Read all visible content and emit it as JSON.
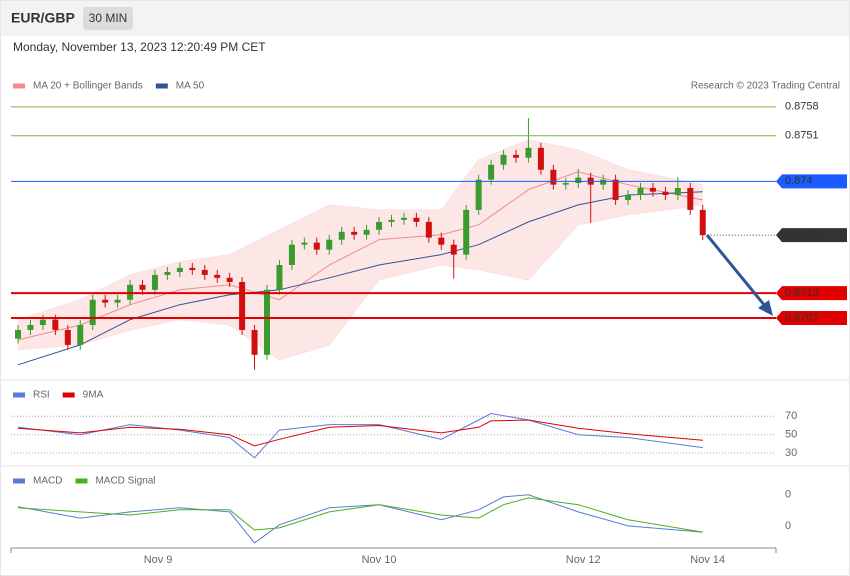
{
  "header": {
    "symbol": "EUR/GBP",
    "timeframe": "30 MIN",
    "date": "Monday, November 13, 2023 12:20:49 PM CET"
  },
  "chart_data": [
    {
      "type": "candlestick",
      "credit": "Research © 2023 Trading Central",
      "ylim": [
        0.86925,
        0.87681
      ],
      "up_color": "#3a9c2f",
      "down_color": "#d01010",
      "candles": [
        [
          0.8702,
          0.87053,
          0.87008,
          0.87041
        ],
        [
          0.87041,
          0.87065,
          0.87029,
          0.87053
        ],
        [
          0.87053,
          0.87078,
          0.87041,
          0.87066
        ],
        [
          0.87066,
          0.87078,
          0.87029,
          0.87041
        ],
        [
          0.87041,
          0.87053,
          0.86993,
          0.87005
        ],
        [
          0.87005,
          0.87065,
          0.86993,
          0.87053
        ],
        [
          0.87053,
          0.87126,
          0.87041,
          0.87114
        ],
        [
          0.87114,
          0.87126,
          0.87095,
          0.87107
        ],
        [
          0.87107,
          0.87126,
          0.87095,
          0.87114
        ],
        [
          0.87114,
          0.87162,
          0.87102,
          0.8715
        ],
        [
          0.8715,
          0.87162,
          0.87126,
          0.87138
        ],
        [
          0.87138,
          0.87186,
          0.87126,
          0.87174
        ],
        [
          0.87174,
          0.87193,
          0.87162,
          0.87181
        ],
        [
          0.87181,
          0.87203,
          0.87169,
          0.87191
        ],
        [
          0.87191,
          0.87203,
          0.87174,
          0.87186
        ],
        [
          0.87186,
          0.87198,
          0.87162,
          0.87174
        ],
        [
          0.87174,
          0.87186,
          0.87155,
          0.87167
        ],
        [
          0.87167,
          0.87179,
          0.87145,
          0.87157
        ],
        [
          0.87157,
          0.87169,
          0.87029,
          0.87041
        ],
        [
          0.87041,
          0.87053,
          0.86945,
          0.86981
        ],
        [
          0.86981,
          0.8715,
          0.86969,
          0.87138
        ],
        [
          0.87138,
          0.8721,
          0.87126,
          0.87198
        ],
        [
          0.87198,
          0.87259,
          0.87186,
          0.87247
        ],
        [
          0.87247,
          0.87264,
          0.87235,
          0.87252
        ],
        [
          0.87252,
          0.87264,
          0.87223,
          0.87235
        ],
        [
          0.87235,
          0.87271,
          0.87223,
          0.87259
        ],
        [
          0.87259,
          0.8729,
          0.87247,
          0.87278
        ],
        [
          0.87278,
          0.8729,
          0.87259,
          0.87271
        ],
        [
          0.87271,
          0.87295,
          0.87259,
          0.87283
        ],
        [
          0.87283,
          0.87314,
          0.87271,
          0.87302
        ],
        [
          0.87302,
          0.87319,
          0.8729,
          0.87307
        ],
        [
          0.87307,
          0.87324,
          0.87295,
          0.87312
        ],
        [
          0.87312,
          0.87324,
          0.8729,
          0.87302
        ],
        [
          0.87302,
          0.87314,
          0.87252,
          0.87264
        ],
        [
          0.87264,
          0.87276,
          0.87235,
          0.87247
        ],
        [
          0.87247,
          0.87259,
          0.87165,
          0.87223
        ],
        [
          0.87223,
          0.87343,
          0.87211,
          0.87331
        ],
        [
          0.87331,
          0.87416,
          0.87319,
          0.87404
        ],
        [
          0.87404,
          0.87452,
          0.87392,
          0.8744
        ],
        [
          0.8744,
          0.87476,
          0.87428,
          0.87464
        ],
        [
          0.87464,
          0.87476,
          0.87445,
          0.87457
        ],
        [
          0.87457,
          0.87553,
          0.87445,
          0.87481
        ],
        [
          0.87481,
          0.87493,
          0.87416,
          0.87428
        ],
        [
          0.87428,
          0.8744,
          0.8738,
          0.87392
        ],
        [
          0.87392,
          0.87408,
          0.8738,
          0.87396
        ],
        [
          0.87396,
          0.8743,
          0.87384,
          0.87409
        ],
        [
          0.87409,
          0.87421,
          0.873,
          0.87392
        ],
        [
          0.87392,
          0.87416,
          0.8738,
          0.87404
        ],
        [
          0.87404,
          0.87416,
          0.87343,
          0.87355
        ],
        [
          0.87355,
          0.87379,
          0.87343,
          0.87367
        ],
        [
          0.87367,
          0.87396,
          0.87355,
          0.87384
        ],
        [
          0.87384,
          0.87396,
          0.87363,
          0.87375
        ],
        [
          0.87375,
          0.87387,
          0.87355,
          0.87367
        ],
        [
          0.87367,
          0.8741,
          0.87355,
          0.87384
        ],
        [
          0.87384,
          0.87396,
          0.87319,
          0.87331
        ],
        [
          0.87331,
          0.87343,
          0.87258,
          0.8727
        ]
      ],
      "series": [
        {
          "name": "MA 20 + Bollinger Bands",
          "color": "#f08c8c",
          "band_color": "#fde0e0",
          "x": [
            0,
            5,
            9,
            13,
            17,
            21,
            25,
            29,
            34,
            37,
            41,
            45,
            49,
            55
          ],
          "values": [
            0.87017,
            0.87053,
            0.87102,
            0.87138,
            0.8715,
            0.87114,
            0.87198,
            0.87259,
            0.87271,
            0.87295,
            0.8738,
            0.87423,
            0.87392,
            0.87355
          ],
          "upper": [
            0.87066,
            0.87114,
            0.87174,
            0.87206,
            0.87223,
            0.87283,
            0.87343,
            0.87331,
            0.87331,
            0.87452,
            0.875,
            0.87476,
            0.87428,
            0.87392
          ],
          "lower": [
            0.86993,
            0.87005,
            0.87041,
            0.87066,
            0.87053,
            0.86969,
            0.87005,
            0.87162,
            0.87198,
            0.87186,
            0.87162,
            0.87295,
            0.87319,
            0.87343
          ]
        },
        {
          "name": "MA 50",
          "color": "#2f5597",
          "x": [
            0,
            5,
            9,
            13,
            17,
            21,
            25,
            29,
            34,
            37,
            41,
            45,
            49,
            55
          ],
          "values": [
            0.86957,
            0.87005,
            0.87066,
            0.87102,
            0.87126,
            0.87138,
            0.87167,
            0.87198,
            0.87223,
            0.87247,
            0.87302,
            0.87343,
            0.87367,
            0.87375
          ]
        }
      ],
      "levels": [
        {
          "value": 0.8758,
          "color": "#7cb342",
          "label_style": "text",
          "line": "solid"
        },
        {
          "value": 0.8751,
          "color": "#7cb342",
          "label_style": "text",
          "line": "solid"
        },
        {
          "value": 0.874,
          "color": "#1a5cff",
          "label_style": "tag",
          "line": "solid"
        },
        {
          "value": 0.8727,
          "color": "#333333",
          "label_style": "tag",
          "line": "dotted"
        },
        {
          "value": 0.8713,
          "color": "#e00000",
          "label_style": "tag",
          "line": "thick"
        },
        {
          "value": 0.8707,
          "color": "#e00000",
          "label_style": "tag",
          "line": "thick"
        }
      ]
    },
    {
      "type": "line",
      "ylim": [
        15,
        105
      ],
      "yticks": [
        70,
        50,
        30
      ],
      "grid": true,
      "series": [
        {
          "name": "RSI",
          "color": "#5b7bd5",
          "x": [
            0,
            5,
            9,
            13,
            17,
            19,
            21,
            25,
            29,
            34,
            37,
            38,
            41,
            45,
            49,
            55
          ],
          "values": [
            58,
            50,
            61,
            55,
            47,
            25,
            55,
            61,
            61,
            45,
            66,
            73,
            66,
            50,
            47,
            36
          ]
        },
        {
          "name": "9MA",
          "color": "#e00000",
          "x": [
            0,
            5,
            9,
            13,
            17,
            19,
            21,
            25,
            29,
            34,
            37,
            38,
            41,
            45,
            49,
            55
          ],
          "values": [
            57,
            52,
            58,
            56,
            50,
            38,
            45,
            58,
            60,
            52,
            58,
            65,
            66,
            57,
            51,
            44
          ]
        }
      ]
    },
    {
      "type": "line",
      "ylim": [
        -0.00067,
        0.00078
      ],
      "yticks": [
        {
          "value": 0.0003,
          "label": "0"
        },
        {
          "value": -0.0003,
          "label": "0"
        }
      ],
      "grid": false,
      "xticks": [
        {
          "value": 11.25,
          "label": "Nov 9"
        },
        {
          "value": 29,
          "label": "Nov 10"
        },
        {
          "value": 45.4,
          "label": "Nov 12"
        },
        {
          "value": 55.4,
          "label": "Nov 14"
        }
      ],
      "series": [
        {
          "name": "MACD",
          "color": "#5b7bd5",
          "x": [
            0,
            5,
            9,
            13,
            17,
            19,
            21,
            25,
            29,
            34,
            37,
            39,
            41,
            45,
            49,
            55
          ],
          "values": [
            7e-05,
            -0.00015,
            -3e-05,
            5e-05,
            -3e-05,
            -0.00063,
            -0.00028,
            5e-05,
            0.00011,
            -0.00018,
            1e-05,
            0.00026,
            0.0003,
            -3e-05,
            -0.0003,
            -0.00042
          ]
        },
        {
          "name": "MACD Signal",
          "color": "#4caf20",
          "x": [
            0,
            5,
            9,
            13,
            17,
            19,
            21,
            25,
            29,
            34,
            37,
            39,
            41,
            45,
            49,
            55
          ],
          "values": [
            5e-05,
            -3e-05,
            -9e-05,
            1e-05,
            1e-05,
            -0.00038,
            -0.00034,
            -3e-05,
            0.00011,
            -9e-05,
            -0.00015,
            0.00011,
            0.00024,
            0.00011,
            -0.00018,
            -0.00042
          ]
        }
      ]
    }
  ]
}
